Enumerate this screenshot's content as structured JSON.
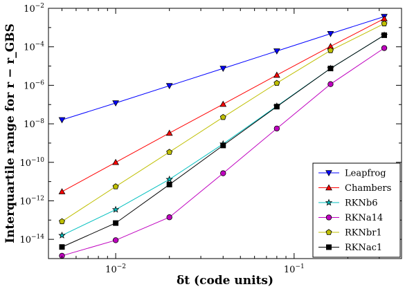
{
  "chart_data": {
    "type": "line",
    "title": "",
    "xlabel": "δt (code units)",
    "ylabel": "Interquartile range for r − r_GBS",
    "xscale": "log",
    "yscale": "log",
    "xlim": [
      0.0042,
      0.4
    ],
    "ylim": [
      1e-15,
      0.01
    ],
    "x_ticks": [
      {
        "value": 0.01,
        "base": "10",
        "exp": "−2"
      },
      {
        "value": 0.1,
        "base": "10",
        "exp": "−1"
      }
    ],
    "y_ticks": [
      {
        "value": 1e-14,
        "base": "10",
        "exp": "−14"
      },
      {
        "value": 1e-12,
        "base": "10",
        "exp": "−12"
      },
      {
        "value": 1e-10,
        "base": "10",
        "exp": "−10"
      },
      {
        "value": 1e-08,
        "base": "10",
        "exp": "−8"
      },
      {
        "value": 1e-06,
        "base": "10",
        "exp": "−6"
      },
      {
        "value": 0.0001,
        "base": "10",
        "exp": "−4"
      },
      {
        "value": 0.01,
        "base": "10",
        "exp": "−2"
      }
    ],
    "x": [
      0.005,
      0.01,
      0.02,
      0.04,
      0.08,
      0.16,
      0.32
    ],
    "legend_position": "bottom-right",
    "grid": false,
    "series": [
      {
        "name": "Leapfrog",
        "color": "#0000ff",
        "marker": "triangle-down",
        "values": [
          1.6e-08,
          1.2e-07,
          9.5e-07,
          7.5e-06,
          6e-05,
          0.00048,
          0.0037
        ]
      },
      {
        "name": "Chambers",
        "color": "#ff0000",
        "marker": "triangle-up",
        "values": [
          3e-12,
          1e-10,
          3.3e-09,
          1.05e-07,
          3.4e-06,
          0.000105,
          0.0029
        ]
      },
      {
        "name": "RKNb6",
        "color": "#00bfbf",
        "marker": "star",
        "values": [
          1.6e-14,
          3.5e-13,
          1.3e-11,
          9e-10,
          8.3e-08,
          7.5e-06,
          0.0004
        ]
      },
      {
        "name": "RKNa14",
        "color": "#bf00bf",
        "marker": "circle",
        "values": [
          1.4e-15,
          9e-15,
          1.4e-13,
          2.7e-11,
          5.7e-09,
          1.15e-06,
          8.6e-05
        ]
      },
      {
        "name": "RKNbr1",
        "color": "#bfbf00",
        "marker": "pentagon",
        "values": [
          8.5e-14,
          5.5e-12,
          3.4e-10,
          2.2e-08,
          1.3e-06,
          6.5e-05,
          0.0016
        ]
      },
      {
        "name": "RKNac1",
        "color": "#000000",
        "marker": "square",
        "values": [
          4e-15,
          7e-14,
          7e-12,
          7.5e-10,
          7.8e-08,
          7.5e-06,
          0.0004
        ]
      }
    ]
  }
}
